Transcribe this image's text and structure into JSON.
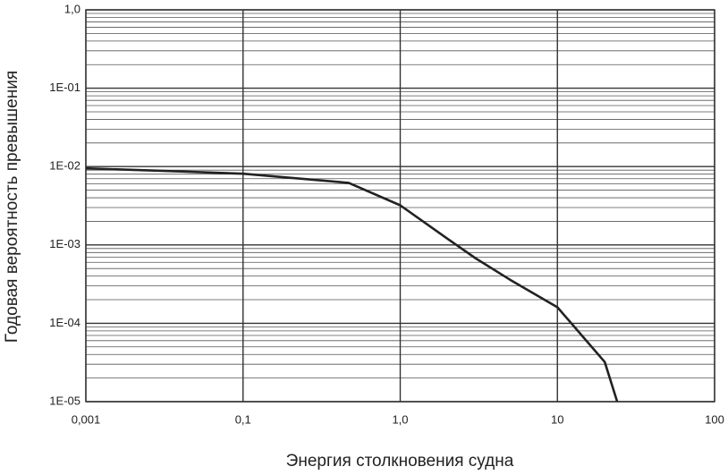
{
  "chart_data": {
    "type": "line",
    "x_label": "Энергия столкновения судна",
    "y_label": "Годовая вероятность превышения",
    "x": [
      0.001,
      0.01,
      0.1,
      0.47,
      1,
      2,
      3,
      5,
      10,
      20,
      24
    ],
    "values": [
      0.0095,
      0.0088,
      0.0081,
      0.0062,
      0.0032,
      0.0012,
      0.00068,
      0.00036,
      0.00016,
      3.2e-05,
      1e-05
    ],
    "color": "#222222",
    "xlim": [
      0.001,
      100
    ],
    "xticks": [
      {
        "value": 0.001,
        "label": "0,001"
      },
      {
        "value": 0.1,
        "label": "0,1"
      },
      {
        "value": 1,
        "label": "1,0"
      },
      10,
      100
    ],
    "ylim": [
      1e-05,
      1
    ],
    "yticks": [
      {
        "value": 1e-05,
        "label": "1E-05"
      },
      {
        "value": 0.0001,
        "label": "1E-04"
      },
      {
        "value": 0.001,
        "label": "1E-03"
      },
      {
        "value": 0.01,
        "label": "1E-02"
      },
      {
        "value": 0.1,
        "label": "1E-01"
      },
      {
        "value": 1,
        "label": "1,0"
      }
    ],
    "log_x": true,
    "log_y": true,
    "grid": true,
    "minor_grid_y": true
  }
}
